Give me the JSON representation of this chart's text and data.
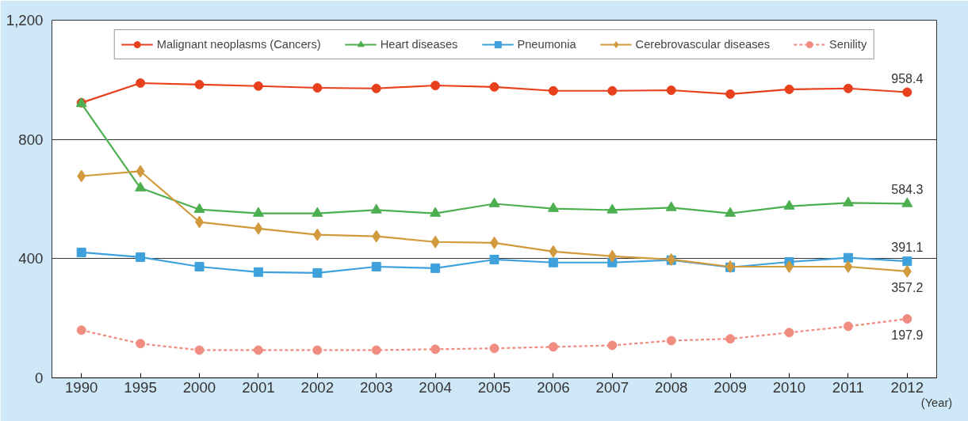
{
  "chart_data": {
    "type": "line",
    "xlabel": "(Year)",
    "categories": [
      "1990",
      "1995",
      "2000",
      "2001",
      "2002",
      "2003",
      "2004",
      "2005",
      "2006",
      "2007",
      "2008",
      "2009",
      "2010",
      "2011",
      "2012"
    ],
    "ylim": [
      0,
      1200
    ],
    "yticks": [
      0,
      400,
      {
        "value": 800,
        "label": "800"
      },
      {
        "value": 1200,
        "label": "1,200"
      }
    ],
    "grid": "y",
    "legend": "top",
    "series": [
      {
        "name": "Malignant neoplasms (Cancers)",
        "color": "#e8401c",
        "marker": "circle",
        "values": [
          923,
          989,
          984,
          979,
          973,
          971,
          981,
          976,
          963,
          963,
          965,
          952,
          968,
          971,
          958.4
        ],
        "value_labels": [
          null,
          null,
          null,
          null,
          null,
          null,
          null,
          null,
          null,
          null,
          null,
          null,
          null,
          null,
          "958.4"
        ]
      },
      {
        "name": "Heart diseases",
        "color": "#4caf50",
        "marker": "triangle",
        "values": [
          920,
          637,
          565,
          552,
          552,
          563,
          552,
          584,
          568,
          563,
          571,
          552,
          576,
          587,
          584.3
        ],
        "value_labels": [
          null,
          null,
          null,
          null,
          null,
          null,
          null,
          null,
          null,
          null,
          null,
          null,
          null,
          null,
          "584.3"
        ]
      },
      {
        "name": "Pneumonia",
        "color": "#3fa1dc",
        "marker": "square",
        "values": [
          421,
          405,
          373,
          355,
          352,
          373,
          368,
          397,
          387,
          387,
          395,
          371,
          389,
          403,
          391.1
        ],
        "value_labels": [
          null,
          null,
          null,
          null,
          null,
          null,
          null,
          null,
          null,
          null,
          null,
          null,
          null,
          null,
          "391.1"
        ]
      },
      {
        "name": "Cerebrovascular diseases",
        "color": "#d19a3c",
        "marker": "diamond",
        "values": [
          677,
          693,
          523,
          501,
          480,
          475,
          456,
          453,
          424,
          408,
          397,
          373,
          373,
          373,
          357.2
        ],
        "value_labels": [
          null,
          null,
          null,
          null,
          null,
          null,
          null,
          null,
          null,
          null,
          null,
          null,
          null,
          null,
          "357.2"
        ]
      },
      {
        "name": "Senility",
        "color": "#f08c80",
        "marker": "circle",
        "line_style": "dashed",
        "values": [
          160,
          115,
          93,
          93,
          93,
          93,
          96,
          99,
          104,
          109,
          125,
          131,
          152,
          173,
          197.9
        ],
        "value_labels": [
          null,
          null,
          null,
          null,
          null,
          null,
          null,
          null,
          null,
          null,
          null,
          null,
          null,
          null,
          "197.9"
        ]
      }
    ]
  }
}
